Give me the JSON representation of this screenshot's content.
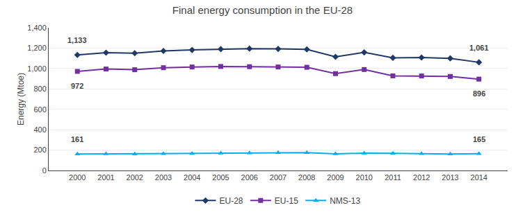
{
  "chart_data": {
    "type": "line",
    "title": "Final energy consumption in the EU-28",
    "y_label": "Energy (Mtoe)",
    "x": [
      2000,
      2001,
      2002,
      2003,
      2004,
      2005,
      2006,
      2007,
      2008,
      2009,
      2010,
      2011,
      2012,
      2013,
      2014
    ],
    "series": [
      {
        "name": "EU-28",
        "color": "#1f3864",
        "marker": "diamond",
        "values": [
          1133,
          1155,
          1150,
          1172,
          1182,
          1190,
          1195,
          1192,
          1188,
          1115,
          1158,
          1105,
          1108,
          1100,
          1061
        ]
      },
      {
        "name": "EU-15",
        "color": "#7030a0",
        "marker": "square",
        "values": [
          972,
          995,
          988,
          1008,
          1015,
          1020,
          1018,
          1015,
          1012,
          950,
          990,
          928,
          927,
          922,
          896
        ]
      },
      {
        "name": "NMS-13",
        "color": "#00b0f0",
        "marker": "triangle-up",
        "values": [
          161,
          163,
          162,
          165,
          167,
          170,
          172,
          175,
          175,
          163,
          170,
          168,
          165,
          162,
          165
        ]
      }
    ],
    "annotations": [
      {
        "text": "1,133",
        "series": "EU-28",
        "x": 2000
      },
      {
        "text": "1,061",
        "series": "EU-28",
        "x": 2014
      },
      {
        "text": "972",
        "series": "EU-15",
        "x": 2000
      },
      {
        "text": "896",
        "series": "EU-15",
        "x": 2014
      },
      {
        "text": "161",
        "series": "NMS-13",
        "x": 2000
      },
      {
        "text": "165",
        "series": "NMS-13",
        "x": 2014
      }
    ],
    "xlim": [
      1999,
      2015
    ],
    "xticks": [
      2000,
      2001,
      2002,
      2003,
      2004,
      2005,
      2006,
      2007,
      2008,
      2009,
      2010,
      2011,
      2012,
      2013,
      2014
    ],
    "ylim": [
      0,
      1400
    ],
    "yticks": [
      0,
      200,
      400,
      600,
      800,
      {
        "value": 1000,
        "label": "1,000"
      },
      {
        "value": 1200,
        "label": "1,200"
      },
      {
        "value": 1400,
        "label": "1,400"
      }
    ],
    "grid": true,
    "legend": "bottom"
  }
}
